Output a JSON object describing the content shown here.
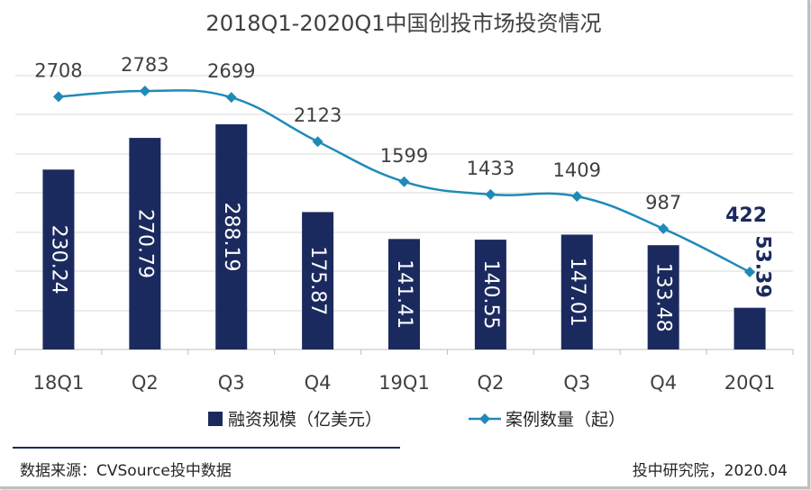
{
  "chart_data": {
    "type": "bar+line",
    "title": "2018Q1-2020Q1中国创投市场投资情况",
    "categories": [
      "18Q1",
      "Q2",
      "Q3",
      "Q4",
      "19Q1",
      "Q2",
      "Q3",
      "Q4",
      "20Q1"
    ],
    "series": [
      {
        "name": "融资规模（亿美元）",
        "type": "bar",
        "color": "#1b2a5e",
        "values": [
          230.24,
          270.79,
          288.19,
          175.87,
          141.41,
          140.55,
          147.01,
          133.48,
          53.39
        ]
      },
      {
        "name": "案例数量（起）",
        "type": "line",
        "color": "#1f8ab8",
        "marker": "diamond",
        "values": [
          2708,
          2783,
          2699,
          2123,
          1599,
          1433,
          1409,
          987,
          422
        ]
      }
    ],
    "grid": true,
    "legend_position": "bottom"
  },
  "footer": {
    "source": "数据来源：CVSource投中数据",
    "credit": "投中研究院，2020.04"
  }
}
